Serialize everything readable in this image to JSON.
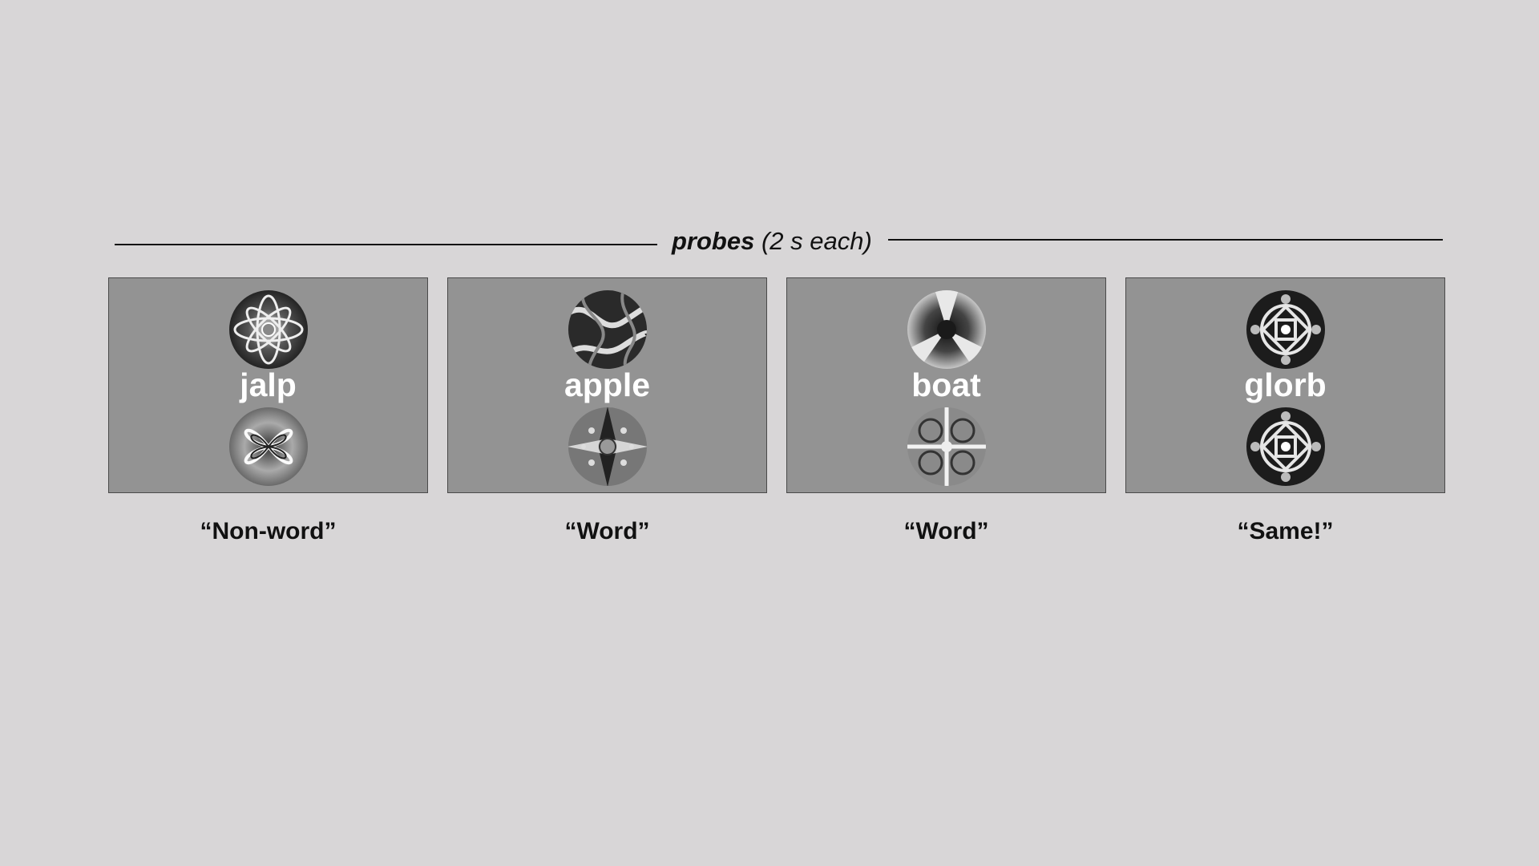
{
  "header": {
    "title_bold": "probes",
    "title_rest": " (2 s each)"
  },
  "probes": [
    {
      "word": "jalp",
      "response": "“Non-word”",
      "top_icon": "fractal-pattern-icon",
      "bottom_icon": "fractal-pattern-icon"
    },
    {
      "word": "apple",
      "response": "“Word”",
      "top_icon": "fractal-pattern-icon",
      "bottom_icon": "fractal-pattern-icon"
    },
    {
      "word": "boat",
      "response": "“Word”",
      "top_icon": "fractal-pattern-icon",
      "bottom_icon": "fractal-pattern-icon"
    },
    {
      "word": "glorb",
      "response": "“Same!”",
      "top_icon": "fractal-pattern-icon",
      "bottom_icon": "fractal-pattern-icon"
    }
  ],
  "colors": {
    "background": "#d8d6d7",
    "panel": "#939393",
    "word_text": "#ffffff",
    "text": "#111111"
  }
}
